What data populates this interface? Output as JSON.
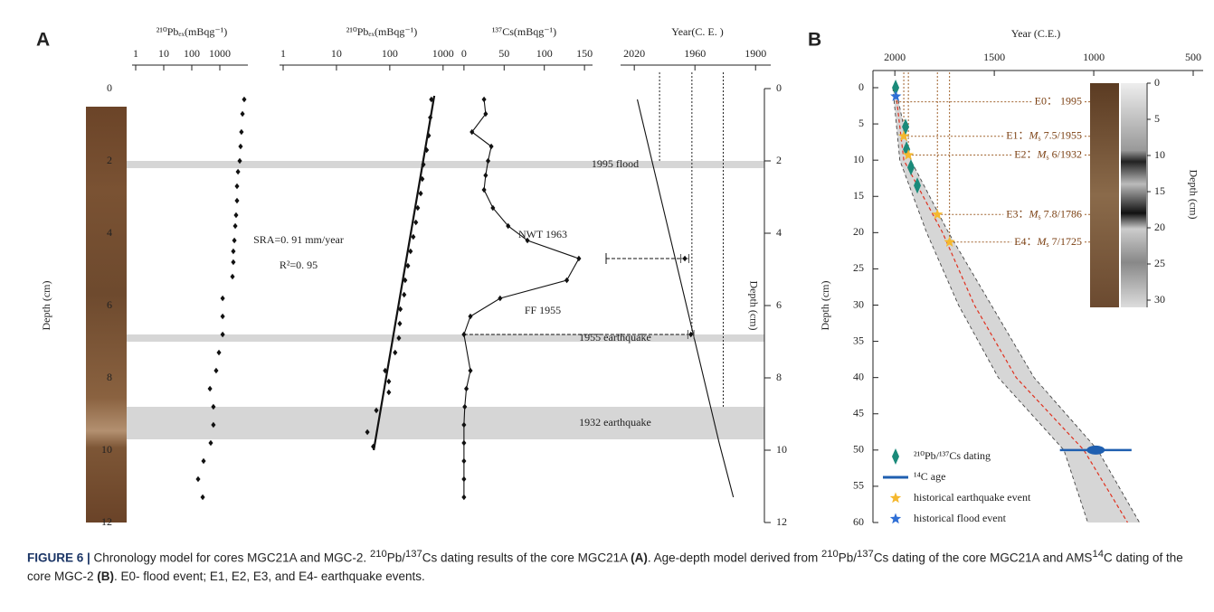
{
  "chart_data": [
    {
      "type": "scatter",
      "panel_label": "A",
      "x_label": "²¹⁰Pbₑₓ(mBqg⁻¹)",
      "xscale": "log",
      "xlim": [
        1,
        10000
      ],
      "xticks": [
        1,
        10,
        100,
        1000
      ],
      "y_label": "Depth (cm)",
      "ylim": [
        0,
        12
      ],
      "yticks": [
        0,
        2,
        4,
        6,
        8,
        10,
        12
      ],
      "x": [
        7410,
        6430,
        5900,
        5500,
        5130,
        4450,
        4100,
        4100,
        3800,
        3550,
        3300,
        3030,
        3030,
        2830,
        1260,
        1260,
        1260,
        930,
        740,
        445,
        590,
        590,
        475,
        263,
        168,
        245
      ],
      "y": [
        0.3,
        0.7,
        1.2,
        1.6,
        2.0,
        2.3,
        2.7,
        3.1,
        3.5,
        3.8,
        4.2,
        4.5,
        4.8,
        5.2,
        5.8,
        6.3,
        6.8,
        7.3,
        7.8,
        8.3,
        8.8,
        9.3,
        9.8,
        10.3,
        10.8,
        11.3
      ]
    },
    {
      "type": "scatter",
      "x_label": "²¹⁰Pbₑₓ(mBqg⁻¹)",
      "xscale": "log",
      "xlim": [
        1,
        5000
      ],
      "xticks": [
        1,
        10,
        100,
        1000
      ],
      "ylim": [
        0,
        12
      ],
      "x": [
        603,
        575,
        537,
        492,
        427,
        407,
        380,
        335,
        309,
        276,
        245,
        219,
        194,
        186,
        158,
        154,
        148,
        126,
        82,
        96,
        96,
        56,
        38,
        49
      ],
      "y": [
        0.3,
        0.8,
        1.3,
        1.7,
        2.1,
        2.5,
        2.9,
        3.3,
        3.7,
        4.1,
        4.5,
        4.9,
        5.3,
        5.7,
        6.1,
        6.5,
        6.9,
        7.3,
        7.8,
        8.1,
        8.4,
        8.9,
        9.5,
        9.9
      ],
      "fit": {
        "x": [
          684,
          50
        ],
        "y": [
          0.2,
          10
        ]
      },
      "annotations": [
        "SRA=0. 91 mm/year",
        "R²=0. 95"
      ]
    },
    {
      "type": "line",
      "x_label": "¹³⁷Cs(mBqg⁻¹)",
      "xlim": [
        -10,
        160
      ],
      "xticks": [
        0,
        50,
        100,
        150
      ],
      "ylim": [
        0,
        12
      ],
      "x": [
        25,
        27,
        10,
        34,
        30,
        27,
        25,
        36,
        55,
        79,
        143,
        128,
        45,
        8,
        0,
        8,
        3,
        1,
        0,
        0,
        0,
        0,
        0
      ],
      "y": [
        0.3,
        0.7,
        1.2,
        1.6,
        2.0,
        2.4,
        2.8,
        3.3,
        3.8,
        4.2,
        4.7,
        5.3,
        5.8,
        6.3,
        6.8,
        7.8,
        8.3,
        8.8,
        9.3,
        9.8,
        10.3,
        10.8,
        11.3
      ]
    },
    {
      "type": "line",
      "x_label": "Year(C. E. )",
      "xlim": [
        2030,
        1885
      ],
      "xticks": [
        2020,
        1960,
        1900
      ],
      "y_label": "Depth (cm)",
      "ylim": [
        0,
        12
      ],
      "yticks": [
        0,
        2,
        4,
        6,
        8,
        10,
        12
      ],
      "x": [
        2017,
        1936,
        1922
      ],
      "y": [
        0.3,
        9.8,
        11.3
      ],
      "guides": [
        {
          "year": 1995,
          "depth": 2
        },
        {
          "year": 1963,
          "depth": 6.8
        },
        {
          "year": 1932,
          "depth": 8.8
        }
      ],
      "markers": [
        {
          "label": "NWT 1963",
          "x": 1970,
          "y": 4.7,
          "xerr": 4
        },
        {
          "label": "FF 1955",
          "x": 1964,
          "y": 6.8,
          "xerr": 3
        }
      ],
      "events": [
        {
          "label": "1995 flood",
          "top": 2.0,
          "bottom": 2.2
        },
        {
          "label": "1955 earthquake",
          "top": 6.8,
          "bottom": 7.0
        },
        {
          "label": "1932 earthquake",
          "top": 8.8,
          "bottom": 9.7
        }
      ]
    },
    {
      "type": "scatter",
      "panel_label": "B",
      "x_label": "Year (C.E.)",
      "xlim": [
        2110,
        450
      ],
      "xticks": [
        2000,
        1500,
        1000,
        500
      ],
      "y_label": "Depth (cm)",
      "ylim": [
        0,
        60
      ],
      "yticks": [
        0,
        5,
        10,
        15,
        20,
        25,
        30,
        35,
        40,
        45,
        50,
        55,
        60
      ],
      "model": {
        "median": {
          "x": [
            1998,
            1955,
            1760,
            1600,
            1390,
            1050,
            830
          ],
          "y": [
            0,
            10,
            20,
            30,
            40,
            50,
            60
          ]
        },
        "older": {
          "x": [
            1996,
            1920,
            1730,
            1515,
            1300,
            980,
            770
          ],
          "y": [
            0,
            10,
            20,
            30,
            40,
            50,
            60
          ]
        },
        "younger": {
          "x": [
            2010,
            1975,
            1840,
            1680,
            1480,
            1150,
            1030
          ],
          "y": [
            0,
            10,
            20,
            30,
            40,
            50,
            60
          ]
        },
        "color": "#e0301e"
      },
      "series": [
        {
          "name": "²¹⁰Pb/¹³⁷Cs dating",
          "color": "#1a8a7a",
          "marker": "diamond",
          "x": [
            1996,
            1946,
            1941,
            1919,
            1887
          ],
          "y": [
            0,
            5.4,
            8.5,
            11,
            13.5
          ]
        },
        {
          "name": "¹⁴C age",
          "color": "#1f5fb0",
          "marker": "errorbar",
          "x": [
            990
          ],
          "y": [
            50
          ],
          "xerr": [
            180
          ]
        },
        {
          "name": "historical earthquake event",
          "color": "#f5b82e",
          "marker": "star",
          "x": [
            1955,
            1932,
            1786,
            1725
          ],
          "y": [
            6.7,
            9.3,
            17.5,
            21.3
          ]
        },
        {
          "name": "historical flood event",
          "color": "#2f6fd6",
          "marker": "star",
          "x": [
            1995
          ],
          "y": [
            1.2
          ]
        }
      ],
      "events": [
        {
          "id": "E0：",
          "text": " 1995"
        },
        {
          "id": "E1：",
          "symbol": "M",
          "sub": "s",
          "text": " 7.5/1955"
        },
        {
          "id": "E2：",
          "symbol": "M",
          "sub": "s",
          "text": " 6/1932"
        },
        {
          "id": "E3：",
          "symbol": "M",
          "sub": "s",
          "text": " 7.8/1786"
        },
        {
          "id": "E4：",
          "symbol": "M",
          "sub": "s",
          "text": " 7/1725"
        }
      ]
    },
    {
      "type": "core",
      "y_label": "Depth (cm)",
      "ylim": [
        0,
        31
      ],
      "yticks": [
        0,
        5,
        10,
        15,
        20,
        25,
        30
      ]
    }
  ],
  "caption": [
    {
      "text": "FIGURE 6 | ",
      "bold": true,
      "fig": true
    },
    {
      "text": "Chronology model for cores MGC21A and MGC-2. "
    },
    {
      "text": "210",
      "sup": true
    },
    {
      "text": "Pb/"
    },
    {
      "text": "137",
      "sup": true
    },
    {
      "text": "Cs dating results of the core MGC21A "
    },
    {
      "text": "(A)",
      "bold": true
    },
    {
      "text": ". Age-depth model derived from "
    },
    {
      "text": "210",
      "sup": true
    },
    {
      "text": "Pb/"
    },
    {
      "text": "137",
      "sup": true
    },
    {
      "text": "Cs dating of the core MGC21A and AMS"
    },
    {
      "text": "14",
      "sup": true
    },
    {
      "text": "C dating of the core MGC-2 "
    },
    {
      "text": "(B)",
      "bold": true
    },
    {
      "text": ". E0- flood event; E1, E2, E3, and E4- earthquake events."
    }
  ]
}
